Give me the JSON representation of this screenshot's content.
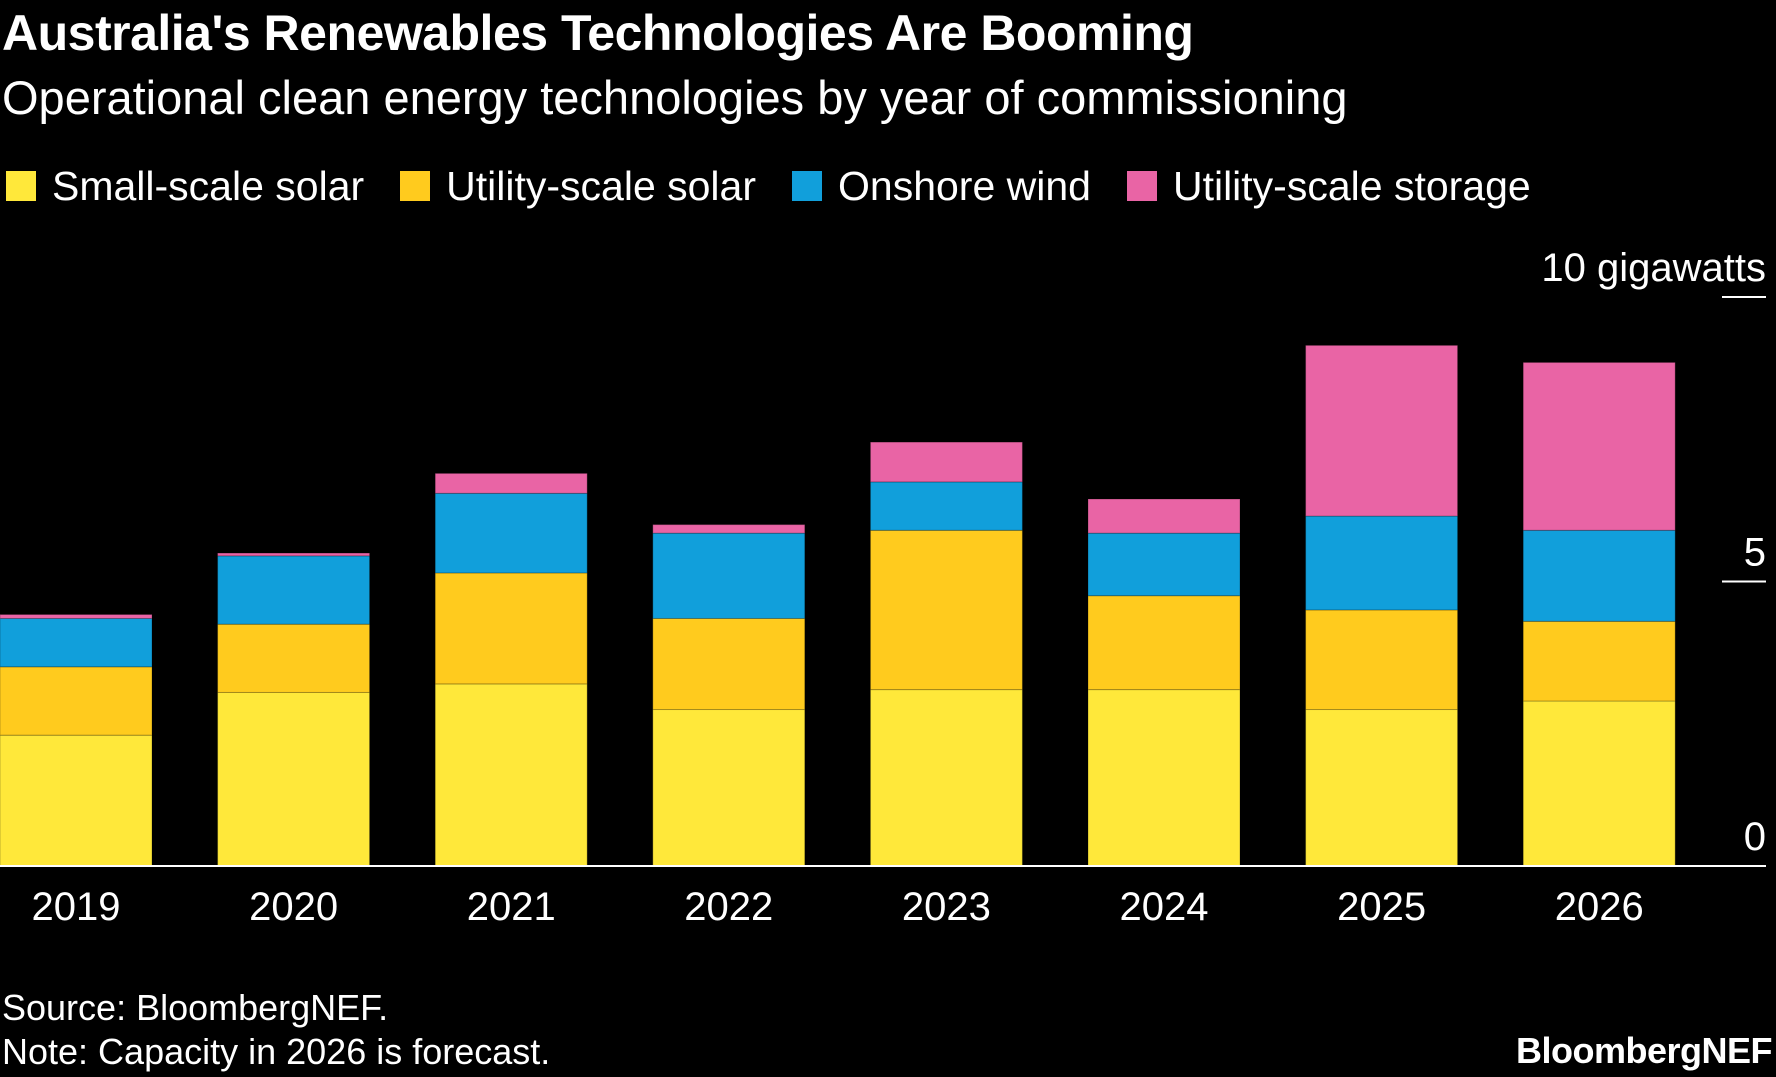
{
  "title": "Australia's Renewables Technologies Are Booming",
  "subtitle": "Operational clean energy technologies by year of commissioning",
  "legend": [
    {
      "label": "Small-scale solar",
      "color": "#FFE83A"
    },
    {
      "label": "Utility-scale solar",
      "color": "#FFCB1E"
    },
    {
      "label": "Onshore wind",
      "color": "#119FDB"
    },
    {
      "label": "Utility-scale storage",
      "color": "#E964A5"
    }
  ],
  "chart_data": {
    "type": "bar",
    "stacked": true,
    "categories": [
      "2019",
      "2020",
      "2021",
      "2022",
      "2023",
      "2024",
      "2025",
      "2026"
    ],
    "series": [
      {
        "name": "Small-scale solar",
        "color": "#FFE83A",
        "values": [
          2.3,
          3.05,
          3.2,
          2.75,
          3.1,
          3.1,
          2.75,
          2.9
        ]
      },
      {
        "name": "Utility-scale solar",
        "color": "#FFCB1E",
        "values": [
          1.2,
          1.2,
          1.95,
          1.6,
          2.8,
          1.65,
          1.75,
          1.4
        ]
      },
      {
        "name": "Onshore wind",
        "color": "#119FDB",
        "values": [
          0.85,
          1.2,
          1.4,
          1.5,
          0.85,
          1.1,
          1.65,
          1.6
        ]
      },
      {
        "name": "Utility-scale storage",
        "color": "#E964A5",
        "values": [
          0.07,
          0.05,
          0.35,
          0.15,
          0.7,
          0.6,
          3.0,
          2.95
        ]
      }
    ],
    "ylim": [
      0,
      10
    ],
    "ytick_values": [
      0,
      5,
      10
    ],
    "ytick_labels": [
      "0",
      "5",
      "10 gigawatts"
    ],
    "xlabel": "",
    "ylabel": "gigawatts",
    "gridlines": false
  },
  "source": "Source: BloombergNEF.",
  "note": "Note: Capacity in 2026 is forecast.",
  "logo_text": "BloombergNEF"
}
